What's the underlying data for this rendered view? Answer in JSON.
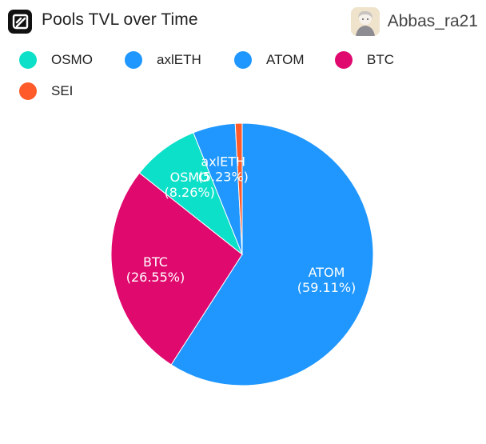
{
  "header": {
    "title": "Pools TVL over Time",
    "username": "Abbas_ra21",
    "logo_icon": "app-logo-icon",
    "avatar_icon": "user-avatar-icon"
  },
  "chart_data": {
    "type": "pie",
    "title": "Pools TVL over Time",
    "legend_position": "top-left",
    "start_angle_deg": 0,
    "direction": "clockwise",
    "slices": [
      {
        "name": "ATOM",
        "value": 59.11,
        "label": "ATOM",
        "percent_label": "(59.11%)",
        "color": "#1f97ff"
      },
      {
        "name": "BTC",
        "value": 26.55,
        "label": "BTC",
        "percent_label": "(26.55%)",
        "color": "#e0096e"
      },
      {
        "name": "OSMO",
        "value": 8.26,
        "label": "OSMO",
        "percent_label": "(8.26%)",
        "color": "#0de0c9"
      },
      {
        "name": "axlETH",
        "value": 5.23,
        "label": "axlETH",
        "percent_label": "(5.23%)",
        "color": "#1f97ff"
      },
      {
        "name": "SEI",
        "value": 0.85,
        "label": "",
        "percent_label": "",
        "color": "#ff5a29"
      }
    ],
    "legend": [
      {
        "name": "OSMO",
        "color": "#0de0c9"
      },
      {
        "name": "axlETH",
        "color": "#1f97ff"
      },
      {
        "name": "ATOM",
        "color": "#1f97ff"
      },
      {
        "name": "BTC",
        "color": "#e0096e"
      },
      {
        "name": "SEI",
        "color": "#ff5a29"
      }
    ]
  }
}
